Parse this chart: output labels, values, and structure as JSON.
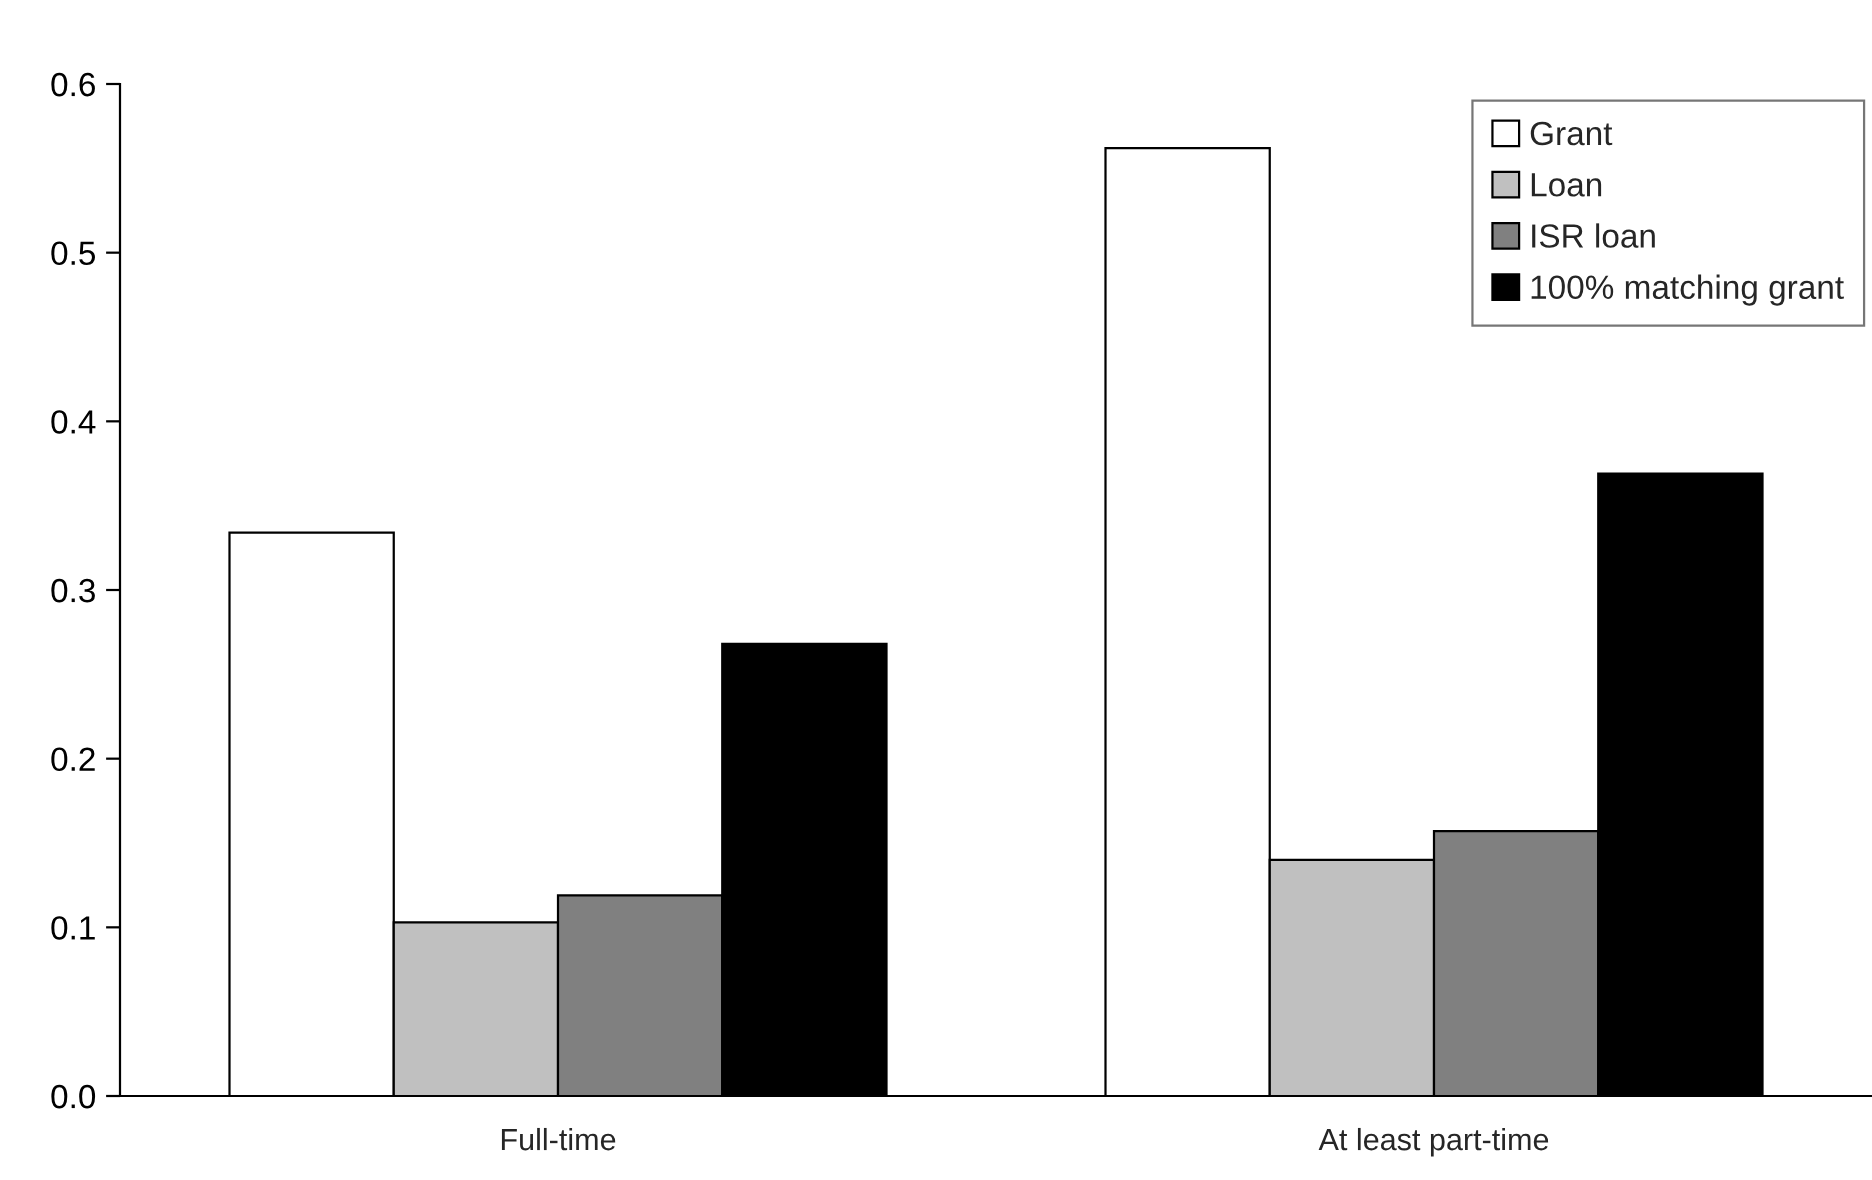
{
  "chart_data": {
    "type": "bar",
    "categories": [
      "Full-time",
      "At least part-time"
    ],
    "series": [
      {
        "name": "Grant",
        "color": "#ffffff",
        "values": [
          0.334,
          0.562
        ]
      },
      {
        "name": "Loan",
        "color": "#c0c0c0",
        "values": [
          0.103,
          0.14
        ]
      },
      {
        "name": "ISR loan",
        "color": "#808080",
        "values": [
          0.119,
          0.157
        ]
      },
      {
        "name": "100% matching grant",
        "color": "#000000",
        "values": [
          0.268,
          0.369
        ]
      }
    ],
    "ylim": [
      0,
      0.6
    ],
    "yticks": [
      {
        "value": 0,
        "label": "0.0"
      },
      0.1,
      0.2,
      0.3,
      0.4,
      0.5,
      0.6
    ],
    "grid": false,
    "legend": "top right"
  }
}
